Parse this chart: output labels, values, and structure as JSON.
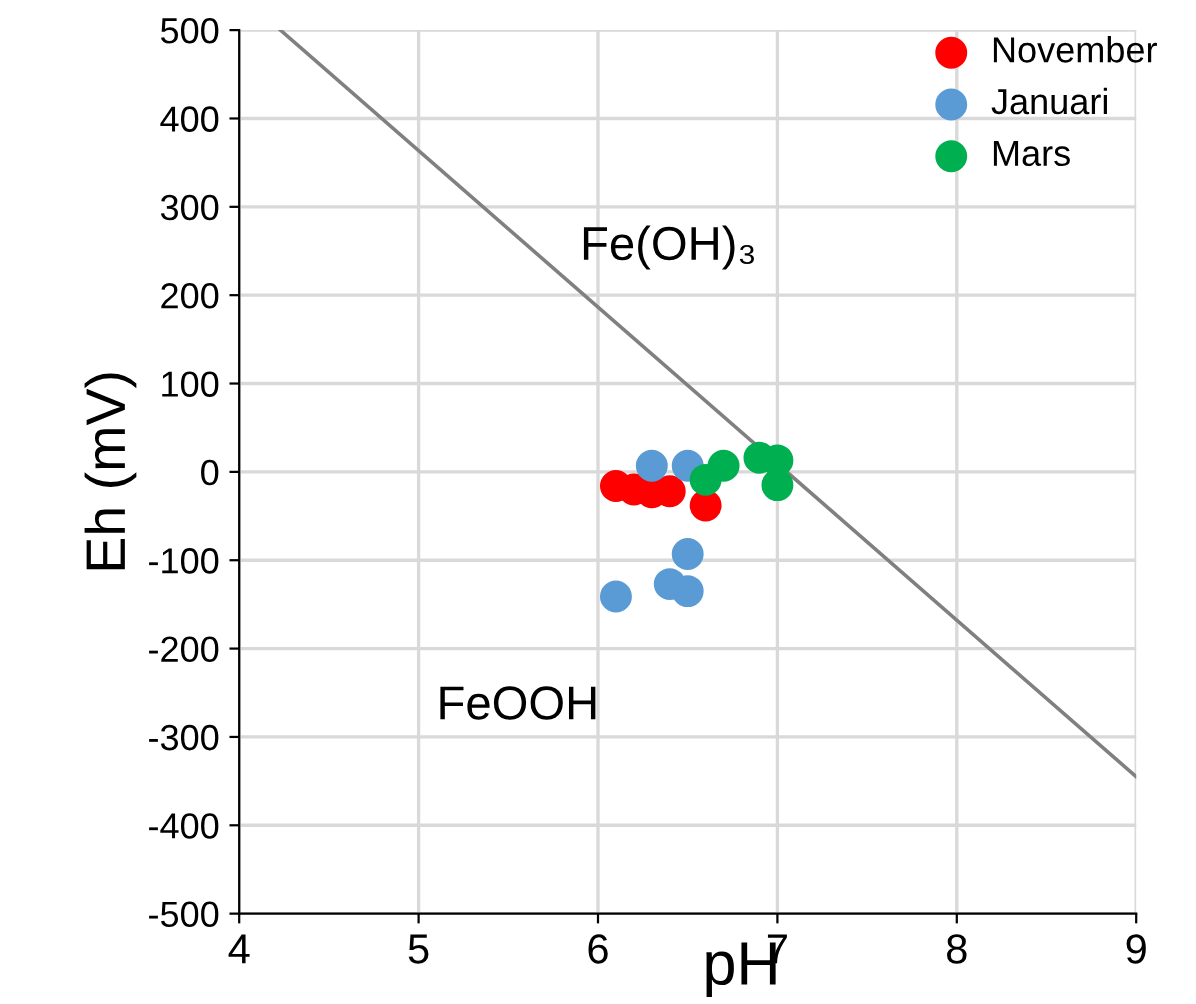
{
  "chart_data": {
    "type": "scatter",
    "xlabel": "pH",
    "ylabel": "Eh (mV)",
    "xlim": [
      4,
      9
    ],
    "xticks": [
      4,
      5,
      6,
      7,
      8,
      9
    ],
    "ylim": [
      -500,
      500
    ],
    "yticks": [
      -500,
      -400,
      -300,
      -200,
      -100,
      0,
      100,
      200,
      300,
      400,
      500
    ],
    "grid": true,
    "legend": "top right",
    "marker": "circle",
    "annotations": [
      "Fe(OH)₃",
      "FeOOH"
    ],
    "series": [
      {
        "type": "line",
        "color": "#808080",
        "x": [
          4.23,
          9
        ],
        "values": [
          500,
          -345
        ],
        "marker": "none",
        "line_style": "solid"
      },
      {
        "name": "November",
        "color": "#ff0000",
        "x": [
          6.1,
          6.2,
          6.3,
          6.4,
          6.6
        ],
        "values": [
          -16,
          -20,
          -23,
          -22,
          -38
        ]
      },
      {
        "name": "Januari",
        "color": "#5b9bd5",
        "x": [
          6.3,
          6.5,
          6.5,
          6.4,
          6.5,
          6.1
        ],
        "values": [
          7,
          7,
          -93,
          -127,
          -135,
          -141
        ]
      },
      {
        "name": "Mars",
        "color": "#00b050",
        "x": [
          6.6,
          6.7,
          6.9,
          7.0,
          7.0
        ],
        "values": [
          -9,
          7,
          16,
          13,
          -15
        ]
      }
    ]
  }
}
